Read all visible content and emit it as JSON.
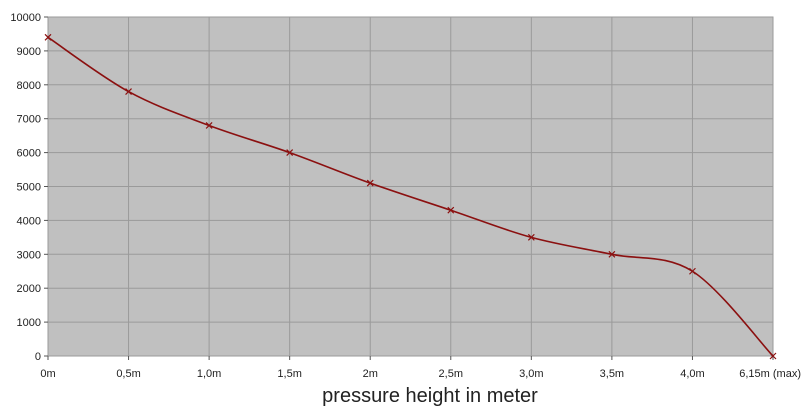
{
  "chart_data": {
    "type": "line",
    "title": "",
    "xlabel": "pressure height in meter",
    "ylabel": "",
    "ylim": [
      0,
      10000
    ],
    "yticks": [
      0,
      1000,
      2000,
      3000,
      4000,
      5000,
      6000,
      7000,
      8000,
      9000,
      10000
    ],
    "categories": [
      "0m",
      "0,5m",
      "1,0m",
      "1,5m",
      "2m",
      "2,5m",
      "3,0m",
      "3,5m",
      "4,0m",
      "6,15m (max)"
    ],
    "series": [
      {
        "values": [
          9400,
          7800,
          6800,
          6000,
          5100,
          4300,
          3500,
          3000,
          2500,
          0
        ]
      }
    ],
    "grid": true,
    "legend": "none",
    "colors": {
      "plot_background": "#c0c0c0",
      "line": "#8b1010",
      "grid": "#9a9a9a"
    }
  }
}
